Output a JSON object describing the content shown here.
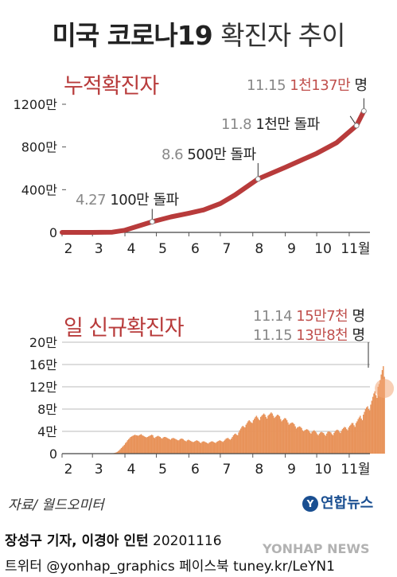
{
  "title_bold": "미국 코로나19",
  "title_light": "확진자 추이",
  "source": "자료/ 월드오미터",
  "logo_text": "연합뉴스",
  "credit_line1": "장성구 기자, 이경아 인턴",
  "credit_date": "20201116",
  "credit_line2": "트위터 @yonhap_graphics  페이스북 tuney.kr/LeYN1",
  "watermark": "YONHAP NEWS",
  "colors": {
    "line": "#b83b3b",
    "bar": "#e8935a",
    "accent": "#c0504d"
  },
  "chart_data": [
    {
      "type": "line",
      "title": "누적확진자",
      "x_ticks": [
        "2",
        "3",
        "4",
        "5",
        "6",
        "7",
        "8",
        "9",
        "10",
        "11월"
      ],
      "y_ticks": [
        "0",
        "400만",
        "800만",
        "1200만"
      ],
      "ylim": [
        0,
        12000000
      ],
      "series": [
        {
          "x": [
            "2020-02-01",
            "2020-03-01",
            "2020-03-20",
            "2020-04-01",
            "2020-04-27",
            "2020-05-15",
            "2020-06-01",
            "2020-06-15",
            "2020-07-01",
            "2020-07-15",
            "2020-08-06",
            "2020-09-01",
            "2020-10-01",
            "2020-10-20",
            "2020-11-08",
            "2020-11-15"
          ],
          "y": [
            0,
            100,
            20000,
            200000,
            1000000,
            1450000,
            1800000,
            2100000,
            2700000,
            3500000,
            5000000,
            6100000,
            7400000,
            8400000,
            10000000,
            11370000
          ]
        }
      ],
      "annotations": [
        {
          "date": "4.27",
          "text": "100만 돌파",
          "x": "2020-04-27",
          "y": 1000000
        },
        {
          "date": "8.6",
          "text": "500만 돌파",
          "x": "2020-08-06",
          "y": 5000000
        },
        {
          "date": "11.8",
          "text": "1천만 돌파",
          "x": "2020-11-08",
          "y": 10000000
        },
        {
          "date": "11.15",
          "text": "1천137만",
          "suffix": "명",
          "x": "2020-11-15",
          "y": 11370000
        }
      ]
    },
    {
      "type": "bar",
      "title": "일 신규확진자",
      "x_ticks": [
        "2",
        "3",
        "4",
        "5",
        "6",
        "7",
        "8",
        "9",
        "10",
        "11월"
      ],
      "y_ticks": [
        "0",
        "4만",
        "8만",
        "12만",
        "16만",
        "20만"
      ],
      "ylim": [
        0,
        200000
      ],
      "x_start": "2020-02-01",
      "values": [
        0,
        0,
        0,
        0,
        0,
        0,
        0,
        0,
        0,
        0,
        0,
        0,
        0,
        0,
        0,
        0,
        0,
        0,
        0,
        0,
        0,
        0,
        0,
        0,
        0,
        0,
        0,
        0,
        0,
        0,
        0,
        0,
        0,
        0,
        0,
        0,
        0,
        0,
        0,
        0,
        0,
        0,
        0,
        0,
        100,
        200,
        300,
        500,
        700,
        1000,
        1500,
        2000,
        3000,
        4500,
        6000,
        8000,
        10000,
        12000,
        14000,
        16000,
        19000,
        21000,
        24000,
        26000,
        28000,
        30000,
        31000,
        32000,
        33000,
        34000,
        33000,
        33000,
        32000,
        33000,
        34000,
        35000,
        33000,
        32000,
        31000,
        30000,
        29000,
        30000,
        31000,
        32000,
        33000,
        34000,
        33000,
        29000,
        28000,
        30000,
        31000,
        32000,
        31000,
        30000,
        28000,
        27000,
        29000,
        30000,
        30000,
        29000,
        28000,
        27000,
        26000,
        25000,
        27000,
        28000,
        28000,
        27000,
        26000,
        25000,
        24000,
        24000,
        26000,
        27000,
        27000,
        26000,
        24000,
        23000,
        22000,
        24000,
        25000,
        24000,
        23000,
        22000,
        21000,
        21000,
        22000,
        23000,
        24000,
        23000,
        22000,
        20000,
        19000,
        21000,
        22000,
        22000,
        21000,
        20000,
        19000,
        18000,
        20000,
        21000,
        22000,
        22000,
        21000,
        20000,
        19000,
        21000,
        22000,
        23000,
        24000,
        23000,
        22000,
        21000,
        23000,
        25000,
        27000,
        28000,
        28000,
        26000,
        25000,
        27000,
        30000,
        33000,
        35000,
        36000,
        34000,
        33000,
        38000,
        42000,
        45000,
        48000,
        50000,
        48000,
        47000,
        52000,
        55000,
        58000,
        60000,
        58000,
        56000,
        55000,
        60000,
        63000,
        66000,
        68000,
        65000,
        62000,
        60000,
        66000,
        68000,
        70000,
        72000,
        70000,
        66000,
        63000,
        68000,
        70000,
        72000,
        74000,
        72000,
        68000,
        64000,
        66000,
        68000,
        70000,
        69000,
        67000,
        62000,
        58000,
        60000,
        62000,
        64000,
        63000,
        60000,
        56000,
        52000,
        54000,
        55000,
        56000,
        55000,
        53000,
        49000,
        45000,
        47000,
        48000,
        49000,
        48000,
        46000,
        42000,
        40000,
        42000,
        43000,
        44000,
        43000,
        41000,
        38000,
        36000,
        39000,
        41000,
        42000,
        40000,
        38000,
        35000,
        33000,
        36000,
        38000,
        39000,
        38000,
        37000,
        34000,
        32000,
        36000,
        39000,
        40000,
        39000,
        38000,
        35000,
        33000,
        37000,
        40000,
        42000,
        43000,
        42000,
        39000,
        37000,
        41000,
        44000,
        46000,
        48000,
        47000,
        44000,
        42000,
        47000,
        50000,
        52000,
        55000,
        55000,
        51000,
        48000,
        55000,
        58000,
        62000,
        65000,
        68000,
        63000,
        60000,
        70000,
        75000,
        80000,
        83000,
        85000,
        80000,
        78000,
        88000,
        95000,
        102000,
        108000,
        112000,
        105000,
        100000,
        120000,
        125000,
        132000,
        142000,
        150000,
        157000,
        138000
      ]
    }
  ]
}
